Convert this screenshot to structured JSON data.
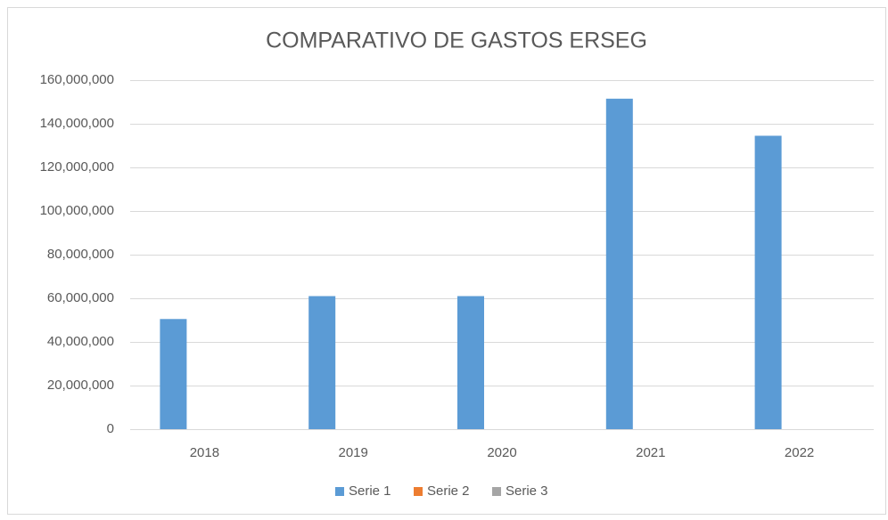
{
  "chart_data": {
    "type": "bar",
    "title": "COMPARATIVO DE GASTOS ERSEG",
    "categories": [
      "2018",
      "2019",
      "2020",
      "2021",
      "2022"
    ],
    "series": [
      {
        "name": "Serie 1",
        "color": "#5b9bd5",
        "values": [
          50500000,
          61000000,
          61000000,
          151500000,
          134500000
        ]
      },
      {
        "name": "Serie 2",
        "color": "#ed7d31",
        "values": [
          null,
          null,
          null,
          null,
          null
        ]
      },
      {
        "name": "Serie 3",
        "color": "#a5a5a5",
        "values": [
          null,
          null,
          null,
          null,
          null
        ]
      }
    ],
    "ylim": [
      0,
      160000000
    ],
    "yticks": [
      0,
      {
        "value": 20000000,
        "label": "20,000,000"
      },
      {
        "value": 40000000,
        "label": "40,000,000"
      },
      {
        "value": 60000000,
        "label": "60,000,000"
      },
      {
        "value": 80000000,
        "label": "80,000,000"
      },
      {
        "value": 100000000,
        "label": "100,000,000"
      },
      {
        "value": 120000000,
        "label": "120,000,000"
      },
      {
        "value": 140000000,
        "label": "140,000,000"
      },
      {
        "value": 160000000,
        "label": "160,000,000"
      }
    ],
    "grid": true,
    "legend": "bottom"
  }
}
